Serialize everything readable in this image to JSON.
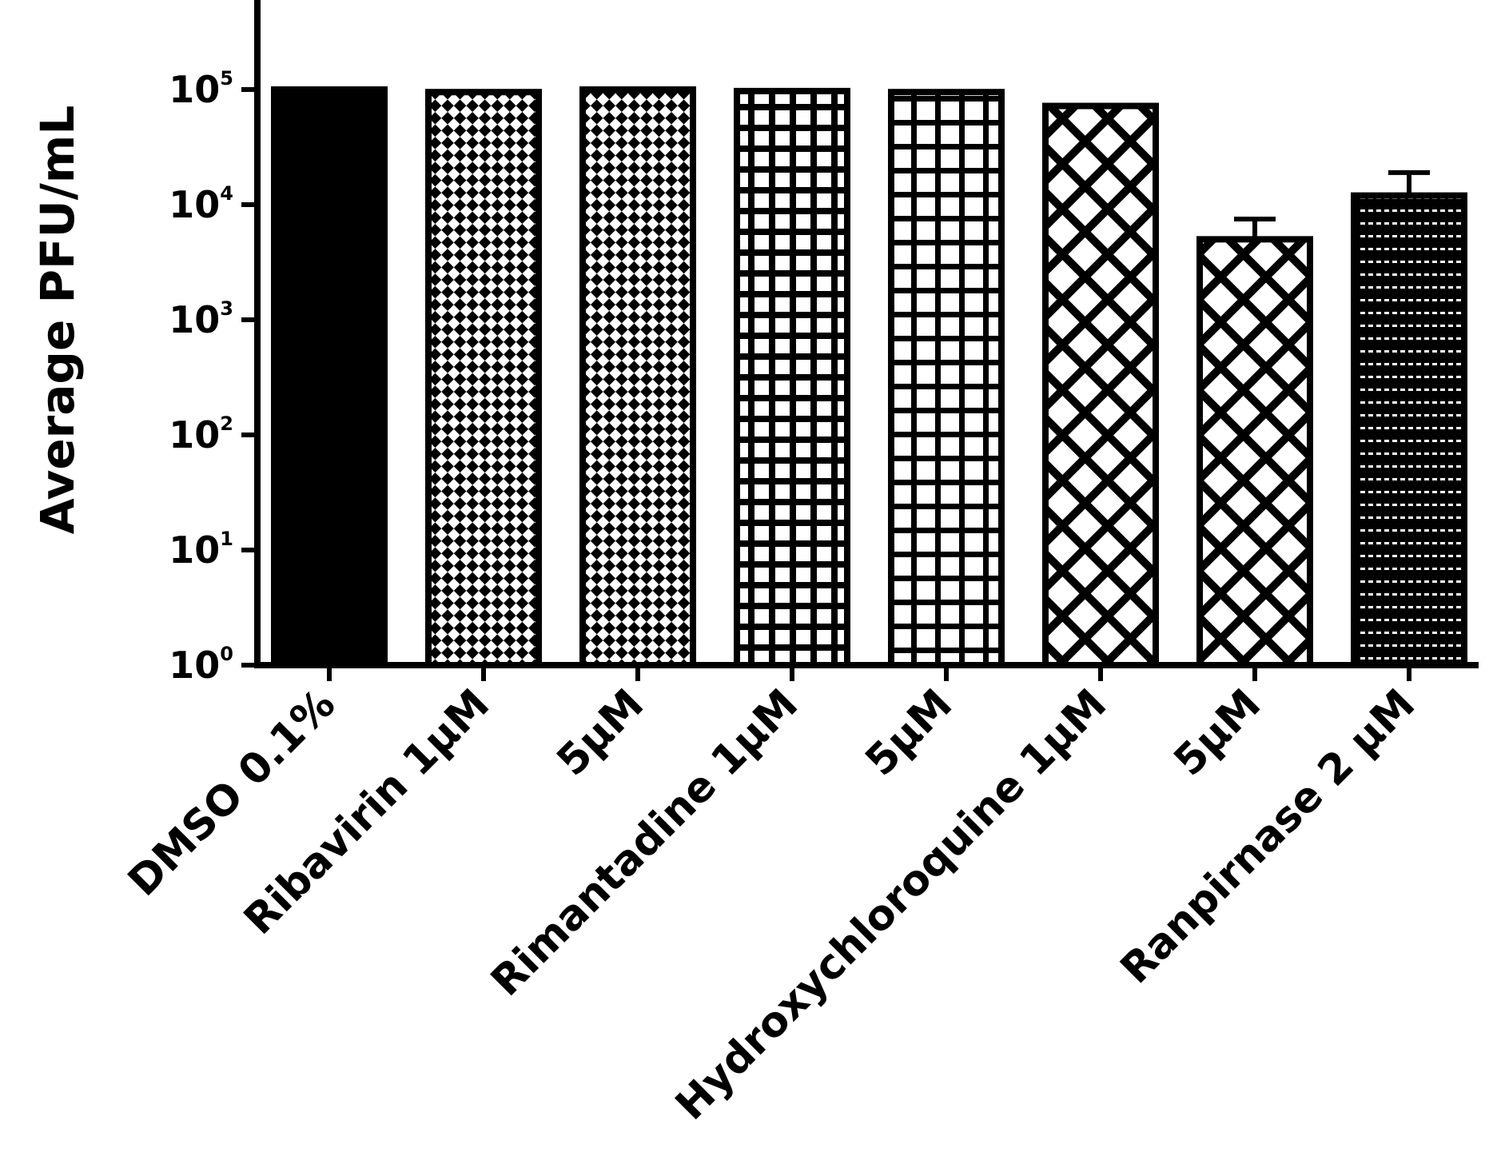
{
  "chart_data": {
    "type": "bar",
    "title": "",
    "xlabel": "",
    "ylabel": "Average PFU/mL",
    "yscale": "log",
    "ylim": [
      1,
      1000000
    ],
    "yticks": [
      {
        "value": 1,
        "base": "10",
        "exp": "0"
      },
      {
        "value": 10,
        "base": "10",
        "exp": "1"
      },
      {
        "value": 100,
        "base": "10",
        "exp": "2"
      },
      {
        "value": 1000,
        "base": "10",
        "exp": "3"
      },
      {
        "value": 10000,
        "base": "10",
        "exp": "4"
      },
      {
        "value": 100000,
        "base": "10",
        "exp": "5"
      }
    ],
    "categories": [
      "DMSO 0.1%",
      "Ribavirin 1μM",
      "5μM",
      "Rimantadine 1μM",
      "5μM",
      "Hydroxychloroquine 1μM",
      "5μM",
      "Ranpirnase 2 μM"
    ],
    "values": [
      100000,
      95000,
      100000,
      97000,
      95000,
      72000,
      5000,
      12000
    ],
    "error_upper": [
      null,
      null,
      null,
      null,
      null,
      null,
      7500,
      19000
    ],
    "patterns": [
      "solid",
      "diag-check",
      "diag-check",
      "grid-bold",
      "grid",
      "diamond",
      "diamond",
      "hlines"
    ]
  }
}
